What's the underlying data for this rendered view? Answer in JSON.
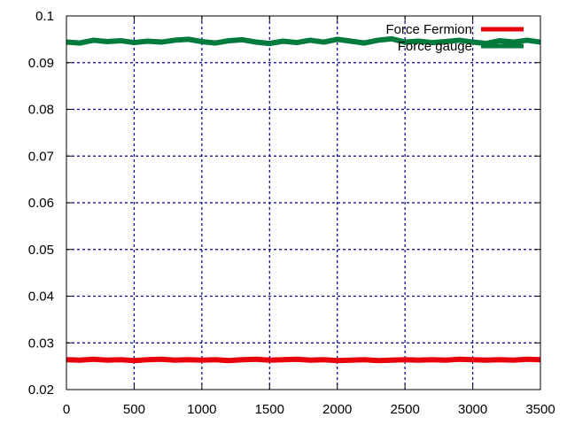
{
  "chart_data": {
    "type": "line",
    "title": "",
    "xlabel": "",
    "ylabel": "",
    "xlim": [
      0,
      3500
    ],
    "ylim": [
      0.02,
      0.1
    ],
    "x_ticks": [
      0,
      500,
      1000,
      1500,
      2000,
      2500,
      3000,
      3500
    ],
    "x_tick_labels": [
      "0",
      "500",
      "1000",
      "1500",
      "2000",
      "2500",
      "3000",
      "3500"
    ],
    "y_ticks": [
      0.02,
      0.03,
      0.04,
      0.05,
      0.06,
      0.07,
      0.08,
      0.09,
      0.1
    ],
    "y_tick_labels": [
      "0.02",
      "0.03",
      "0.04",
      "0.05",
      "0.06",
      "0.07",
      "0.08",
      "0.09",
      "0.1"
    ],
    "grid": true,
    "grid_color": "#00008b",
    "legend_position": "top-right",
    "series": [
      {
        "name": "Force Fermion",
        "color": "#e8000b",
        "x": [
          0,
          100,
          200,
          300,
          400,
          500,
          600,
          700,
          800,
          900,
          1000,
          1100,
          1200,
          1300,
          1400,
          1500,
          1600,
          1700,
          1800,
          1900,
          2000,
          2100,
          2200,
          2300,
          2400,
          2500,
          2600,
          2700,
          2800,
          2900,
          3000,
          3100,
          3200,
          3300,
          3400,
          3500
        ],
        "y": [
          0.0264,
          0.0263,
          0.0265,
          0.0263,
          0.0264,
          0.0262,
          0.0264,
          0.0265,
          0.0263,
          0.0264,
          0.0263,
          0.0264,
          0.0262,
          0.0264,
          0.0265,
          0.0263,
          0.0264,
          0.0265,
          0.0263,
          0.0264,
          0.0262,
          0.0263,
          0.0264,
          0.0262,
          0.0263,
          0.0264,
          0.0263,
          0.0264,
          0.0263,
          0.0265,
          0.0264,
          0.0263,
          0.0264,
          0.0263,
          0.0265,
          0.0264
        ]
      },
      {
        "name": "Force gauge",
        "color": "#007a3d",
        "x": [
          0,
          100,
          200,
          300,
          400,
          500,
          600,
          700,
          800,
          900,
          1000,
          1100,
          1200,
          1300,
          1400,
          1500,
          1600,
          1700,
          1800,
          1900,
          2000,
          2100,
          2200,
          2300,
          2400,
          2500,
          2600,
          2700,
          2800,
          2900,
          3000,
          3100,
          3200,
          3300,
          3400,
          3500
        ],
        "y": [
          0.0944,
          0.0942,
          0.0948,
          0.0945,
          0.0947,
          0.0943,
          0.0946,
          0.0944,
          0.0948,
          0.095,
          0.0945,
          0.0942,
          0.0947,
          0.0949,
          0.0944,
          0.0941,
          0.0946,
          0.0943,
          0.0948,
          0.0944,
          0.095,
          0.0946,
          0.0942,
          0.0948,
          0.0951,
          0.0944,
          0.0946,
          0.0943,
          0.0945,
          0.0948,
          0.0944,
          0.0941,
          0.0947,
          0.0944,
          0.0948,
          0.0944
        ]
      }
    ]
  }
}
